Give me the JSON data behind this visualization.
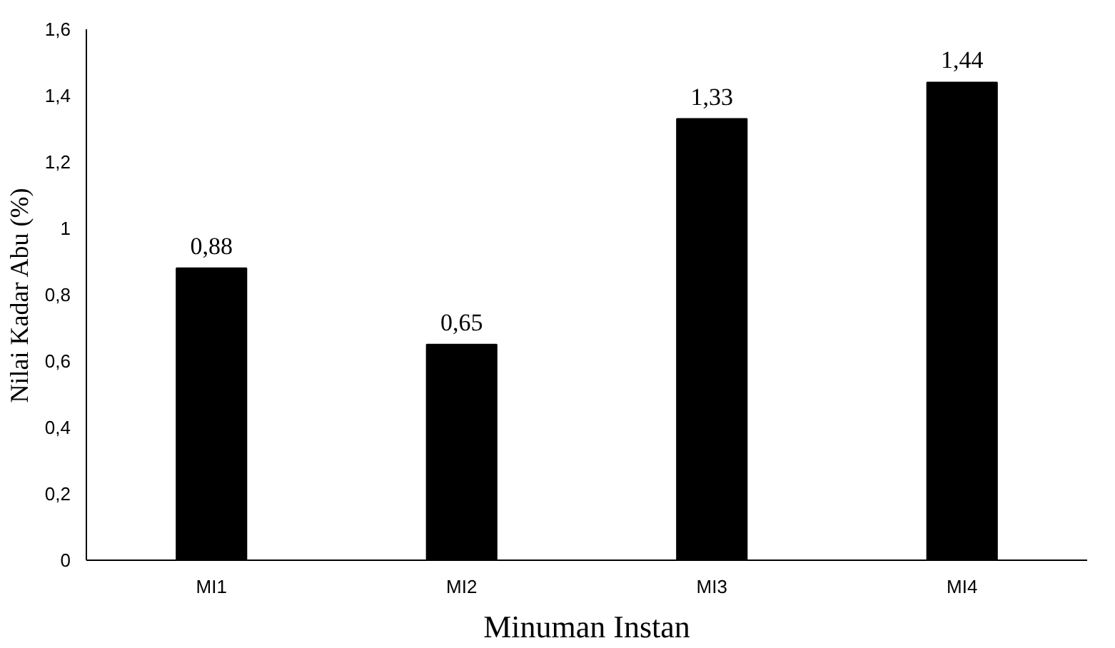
{
  "chart_data": {
    "type": "bar",
    "xlabel": "Minuman Instan",
    "ylabel": "Nilai Kadar Abu (%)",
    "categories": [
      "MI1",
      "MI2",
      "MI3",
      "MI4"
    ],
    "values": [
      0.88,
      0.65,
      1.33,
      1.44
    ],
    "value_labels": [
      "0,88",
      "0,65",
      "1,33",
      "1,44"
    ],
    "color": "#000000",
    "ylim": [
      0,
      1.6
    ],
    "yticks": [
      0,
      {
        "value": 0.2,
        "label": "0,2"
      },
      {
        "value": 0.4,
        "label": "0,4"
      },
      {
        "value": 0.6,
        "label": "0,6"
      },
      {
        "value": 0.8,
        "label": "0,8"
      },
      1,
      {
        "value": 1.2,
        "label": "1,2"
      },
      {
        "value": 1.4,
        "label": "1,4"
      },
      {
        "value": 1.6,
        "label": "1,6"
      }
    ],
    "grid": false
  }
}
